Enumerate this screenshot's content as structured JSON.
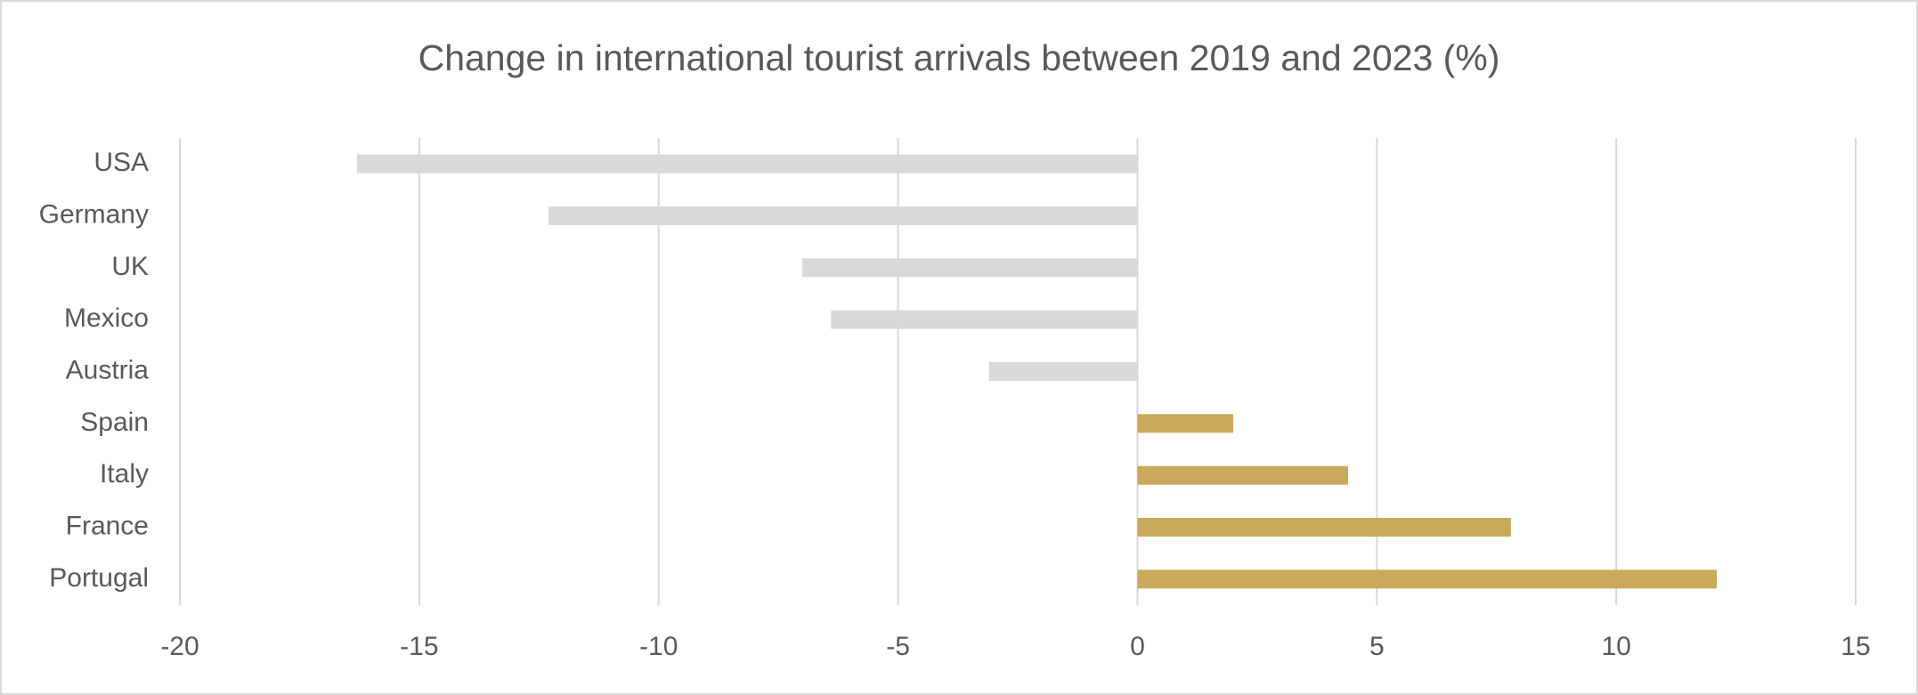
{
  "chart_data": {
    "type": "bar",
    "orientation": "horizontal",
    "title": "Change in international tourist arrivals between 2019 and 2023 (%)",
    "categories": [
      "USA",
      "Germany",
      "UK",
      "Mexico",
      "Austria",
      "Spain",
      "Italy",
      "France",
      "Portugal"
    ],
    "values": [
      -16.3,
      -12.3,
      -7.0,
      -6.4,
      -3.1,
      2.0,
      4.4,
      7.8,
      12.1
    ],
    "colors": [
      "#d9d9d9",
      "#d9d9d9",
      "#d9d9d9",
      "#d9d9d9",
      "#d9d9d9",
      "#c9a95c",
      "#c9a95c",
      "#c9a95c",
      "#c9a95c"
    ],
    "xlim": [
      -20,
      15
    ],
    "xticks": [
      -20,
      -15,
      -10,
      -5,
      0,
      5,
      10,
      15
    ],
    "grid": true
  }
}
